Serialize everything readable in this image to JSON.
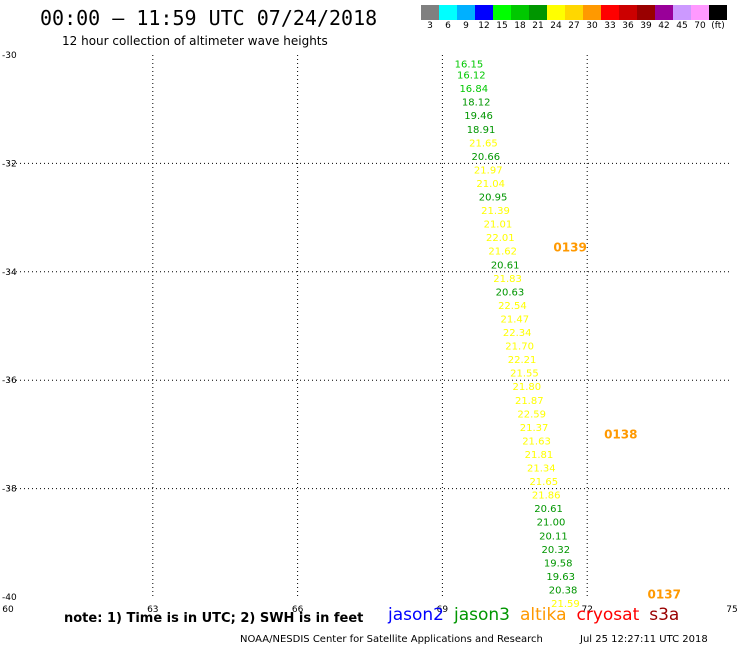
{
  "header": {
    "title": "00:00 – 11:59 UTC 07/24/2018",
    "subtitle": "12 hour collection of altimeter wave heights"
  },
  "legend": {
    "swatches": [
      {
        "color": "#808080",
        "label": "3"
      },
      {
        "color": "#00ffff",
        "label": "6"
      },
      {
        "color": "#00b0ff",
        "label": "9"
      },
      {
        "color": "#0000ff",
        "label": "12"
      },
      {
        "color": "#00ff00",
        "label": "15"
      },
      {
        "color": "#00c800",
        "label": "18"
      },
      {
        "color": "#009600",
        "label": "21"
      },
      {
        "color": "#ffff00",
        "label": "24"
      },
      {
        "color": "#ffd700",
        "label": "27"
      },
      {
        "color": "#ff9900",
        "label": "30"
      },
      {
        "color": "#ff0000",
        "label": "33"
      },
      {
        "color": "#cc0000",
        "label": "36"
      },
      {
        "color": "#990000",
        "label": "39"
      },
      {
        "color": "#990099",
        "label": "42"
      },
      {
        "color": "#cc99ff",
        "label": "45"
      },
      {
        "color": "#ff99ff",
        "label": "70"
      },
      {
        "color": "#000000",
        "label": "(ft)"
      }
    ]
  },
  "map": {
    "lon_range": [
      60,
      75
    ],
    "lat_range": [
      -40,
      -30
    ],
    "x_ticks": [
      "60",
      "63",
      "66",
      "69",
      "72",
      "75"
    ],
    "y_ticks": [
      "-30",
      "-32",
      "-34",
      "-36",
      "-38",
      "-40"
    ],
    "grid_lons": [
      63,
      66,
      69,
      72
    ],
    "grid_lats": [
      -32,
      -34,
      -36,
      -38
    ]
  },
  "chart_data": {
    "type": "scatter",
    "points": [
      {
        "lon": 69.55,
        "lat": -30.05,
        "value": "16.15",
        "color": "#00c800"
      },
      {
        "lon": 69.6,
        "lat": -30.25,
        "value": "16.12",
        "color": "#00c800"
      },
      {
        "lon": 69.65,
        "lat": -30.5,
        "value": "16.84",
        "color": "#00c800"
      },
      {
        "lon": 69.7,
        "lat": -30.75,
        "value": "18.12",
        "color": "#009600"
      },
      {
        "lon": 69.75,
        "lat": -31.0,
        "value": "19.46",
        "color": "#009600"
      },
      {
        "lon": 69.8,
        "lat": -31.25,
        "value": "18.91",
        "color": "#009600"
      },
      {
        "lon": 69.85,
        "lat": -31.5,
        "value": "21.65",
        "color": "#ffff00"
      },
      {
        "lon": 69.9,
        "lat": -31.75,
        "value": "20.66",
        "color": "#009600"
      },
      {
        "lon": 69.95,
        "lat": -32.0,
        "value": "21.97",
        "color": "#ffff00"
      },
      {
        "lon": 70.0,
        "lat": -32.25,
        "value": "21.04",
        "color": "#ffff00"
      },
      {
        "lon": 70.05,
        "lat": -32.5,
        "value": "20.95",
        "color": "#009600"
      },
      {
        "lon": 70.1,
        "lat": -32.75,
        "value": "21.39",
        "color": "#ffff00"
      },
      {
        "lon": 70.15,
        "lat": -33.0,
        "value": "21.01",
        "color": "#ffff00"
      },
      {
        "lon": 70.2,
        "lat": -33.25,
        "value": "22.01",
        "color": "#ffff00"
      },
      {
        "lon": 70.25,
        "lat": -33.5,
        "value": "21.62",
        "color": "#ffff00"
      },
      {
        "lon": 70.3,
        "lat": -33.75,
        "value": "20.61",
        "color": "#009600"
      },
      {
        "lon": 70.35,
        "lat": -34.0,
        "value": "21.83",
        "color": "#ffff00"
      },
      {
        "lon": 70.4,
        "lat": -34.25,
        "value": "20.63",
        "color": "#009600"
      },
      {
        "lon": 70.45,
        "lat": -34.5,
        "value": "22.54",
        "color": "#ffff00"
      },
      {
        "lon": 70.5,
        "lat": -34.75,
        "value": "21.47",
        "color": "#ffff00"
      },
      {
        "lon": 70.55,
        "lat": -35.0,
        "value": "22.34",
        "color": "#ffff00"
      },
      {
        "lon": 70.6,
        "lat": -35.25,
        "value": "21.70",
        "color": "#ffff00"
      },
      {
        "lon": 70.65,
        "lat": -35.5,
        "value": "22.21",
        "color": "#ffff00"
      },
      {
        "lon": 70.7,
        "lat": -35.75,
        "value": "21.55",
        "color": "#ffff00"
      },
      {
        "lon": 70.75,
        "lat": -36.0,
        "value": "21.80",
        "color": "#ffff00"
      },
      {
        "lon": 70.8,
        "lat": -36.25,
        "value": "21.87",
        "color": "#ffff00"
      },
      {
        "lon": 70.85,
        "lat": -36.5,
        "value": "22.59",
        "color": "#ffff00"
      },
      {
        "lon": 70.9,
        "lat": -36.75,
        "value": "21.37",
        "color": "#ffff00"
      },
      {
        "lon": 70.95,
        "lat": -37.0,
        "value": "21.63",
        "color": "#ffff00"
      },
      {
        "lon": 71.0,
        "lat": -37.25,
        "value": "21.81",
        "color": "#ffff00"
      },
      {
        "lon": 71.05,
        "lat": -37.5,
        "value": "21.34",
        "color": "#ffff00"
      },
      {
        "lon": 71.1,
        "lat": -37.75,
        "value": "21.65",
        "color": "#ffff00"
      },
      {
        "lon": 71.15,
        "lat": -38.0,
        "value": "21.86",
        "color": "#ffff00"
      },
      {
        "lon": 71.2,
        "lat": -38.25,
        "value": "20.61",
        "color": "#009600"
      },
      {
        "lon": 71.25,
        "lat": -38.5,
        "value": "21.00",
        "color": "#009600"
      },
      {
        "lon": 71.3,
        "lat": -38.75,
        "value": "20.11",
        "color": "#009600"
      },
      {
        "lon": 71.35,
        "lat": -39.0,
        "value": "20.32",
        "color": "#009600"
      },
      {
        "lon": 71.4,
        "lat": -39.25,
        "value": "19.58",
        "color": "#009600"
      },
      {
        "lon": 71.45,
        "lat": -39.5,
        "value": "19.63",
        "color": "#009600"
      },
      {
        "lon": 71.5,
        "lat": -39.75,
        "value": "20.38",
        "color": "#009600"
      },
      {
        "lon": 71.55,
        "lat": -40.0,
        "value": "21.59",
        "color": "#ffff00"
      }
    ],
    "time_labels": [
      {
        "lon": 71.3,
        "lat": -33.55,
        "text": "0139",
        "color": "#ff9900"
      },
      {
        "lon": 72.35,
        "lat": -37.0,
        "text": "0138",
        "color": "#ff9900"
      },
      {
        "lon": 73.25,
        "lat": -39.95,
        "text": "0137",
        "color": "#ff9900"
      }
    ]
  },
  "footer": {
    "note": "note: 1) Time is in UTC; 2) SWH is in feet",
    "satellites": [
      {
        "name": "jason2",
        "color": "#0000ff"
      },
      {
        "name": "jason3",
        "color": "#009600"
      },
      {
        "name": "altika",
        "color": "#ff9900"
      },
      {
        "name": "cryosat",
        "color": "#ff0000"
      },
      {
        "name": "s3a",
        "color": "#990000"
      }
    ],
    "credit": "NOAA/NESDIS Center for Satellite Applications and Research",
    "timestamp": "Jul 25 12:27:11 UTC 2018"
  }
}
